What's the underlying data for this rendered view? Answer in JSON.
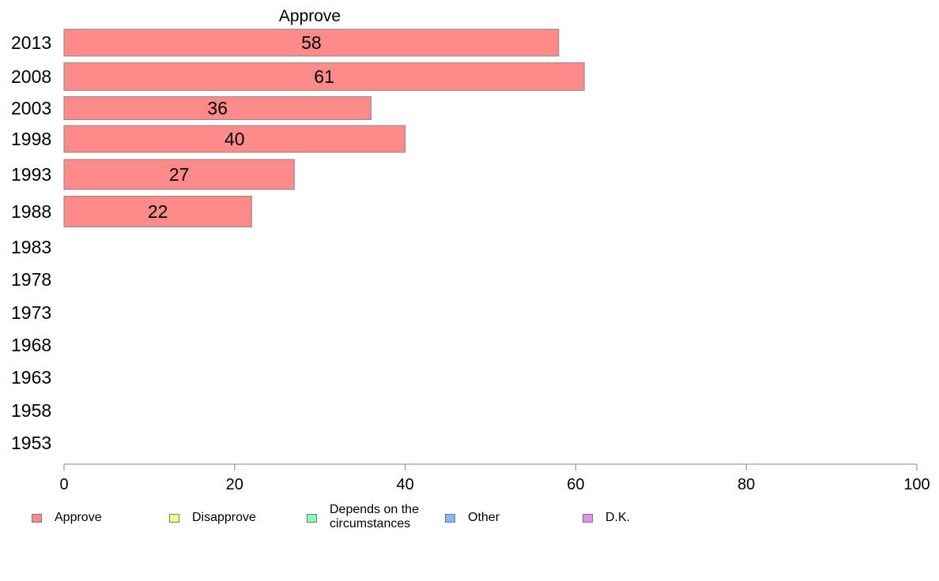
{
  "chart_data": {
    "type": "bar",
    "orientation": "horizontal",
    "title": "Approve",
    "categories": [
      "2013",
      "2008",
      "2003",
      "1998",
      "1993",
      "1988",
      "1983",
      "1978",
      "1973",
      "1968",
      "1963",
      "1958",
      "1953"
    ],
    "series": [
      {
        "name": "Approve",
        "values": [
          58,
          61,
          36,
          40,
          27,
          22,
          null,
          null,
          null,
          null,
          null,
          null,
          null
        ],
        "color": "#ff8a8a"
      }
    ],
    "xlim": [
      0,
      100
    ],
    "x_ticks": [
      0,
      20,
      40,
      60,
      80,
      100
    ],
    "grid": false,
    "legend_position": "bottom",
    "legend": [
      {
        "label": "Approve",
        "color": "#ff8a8a"
      },
      {
        "label": "Disapprove",
        "color": "#eaff8a"
      },
      {
        "label": "Depends on the circumstances",
        "color": "#8affb4"
      },
      {
        "label": "Other",
        "color": "#8ab4ff"
      },
      {
        "label": "D.K.",
        "color": "#f08aff"
      }
    ]
  }
}
